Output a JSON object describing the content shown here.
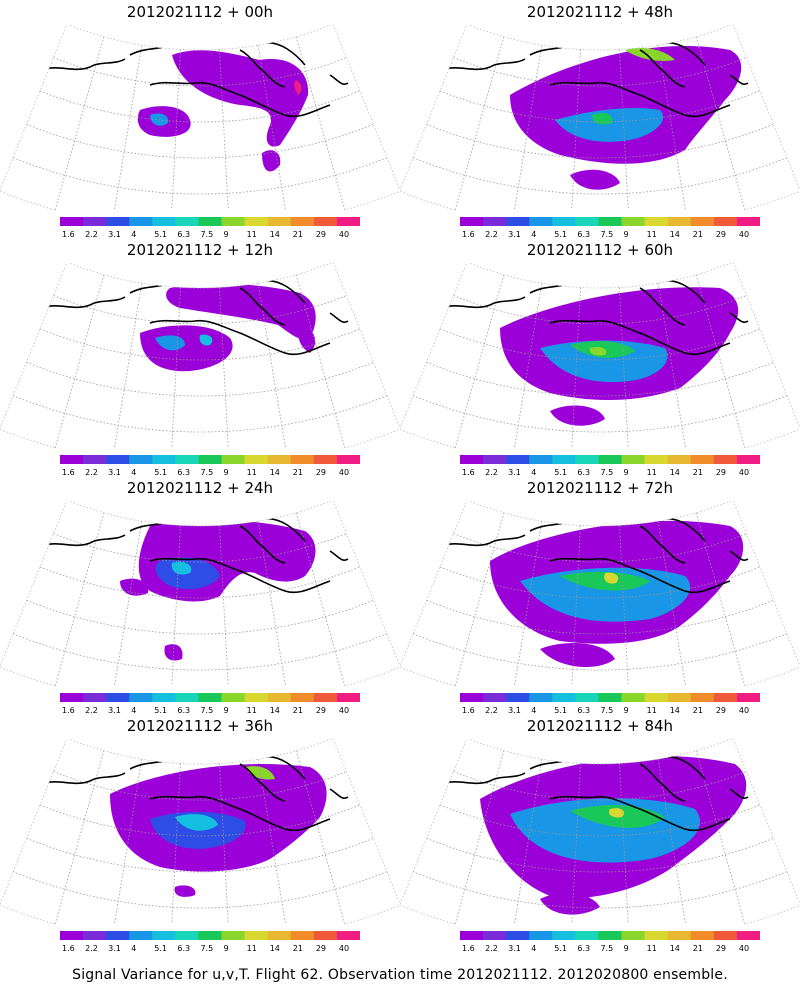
{
  "colorbar": {
    "colors": [
      "#9b00d9",
      "#7a2cd9",
      "#2e4de6",
      "#1a96e6",
      "#14bfe0",
      "#1ad6b8",
      "#1ac85a",
      "#8ad62c",
      "#d8d830",
      "#e8b830",
      "#f08c2a",
      "#f05a3a",
      "#f01e82"
    ],
    "labels": [
      "1.6",
      "2.2",
      "3.1",
      "4",
      "5.1",
      "6.3",
      "7.5",
      "9",
      "11",
      "14",
      "21",
      "29",
      "40"
    ]
  },
  "panels": [
    {
      "title": "2012021112 + 00h"
    },
    {
      "title": "2012021112 + 48h"
    },
    {
      "title": "2012021112 + 12h"
    },
    {
      "title": "2012021112 + 60h"
    },
    {
      "title": "2012021112 + 24h"
    },
    {
      "title": "2012021112 + 72h"
    },
    {
      "title": "2012021112 + 36h"
    },
    {
      "title": "2012021112 + 84h"
    }
  ],
  "footer": "Signal Variance for u,v,T. Flight 62. Observation time 2012021112. 2012020800 ensemble."
}
